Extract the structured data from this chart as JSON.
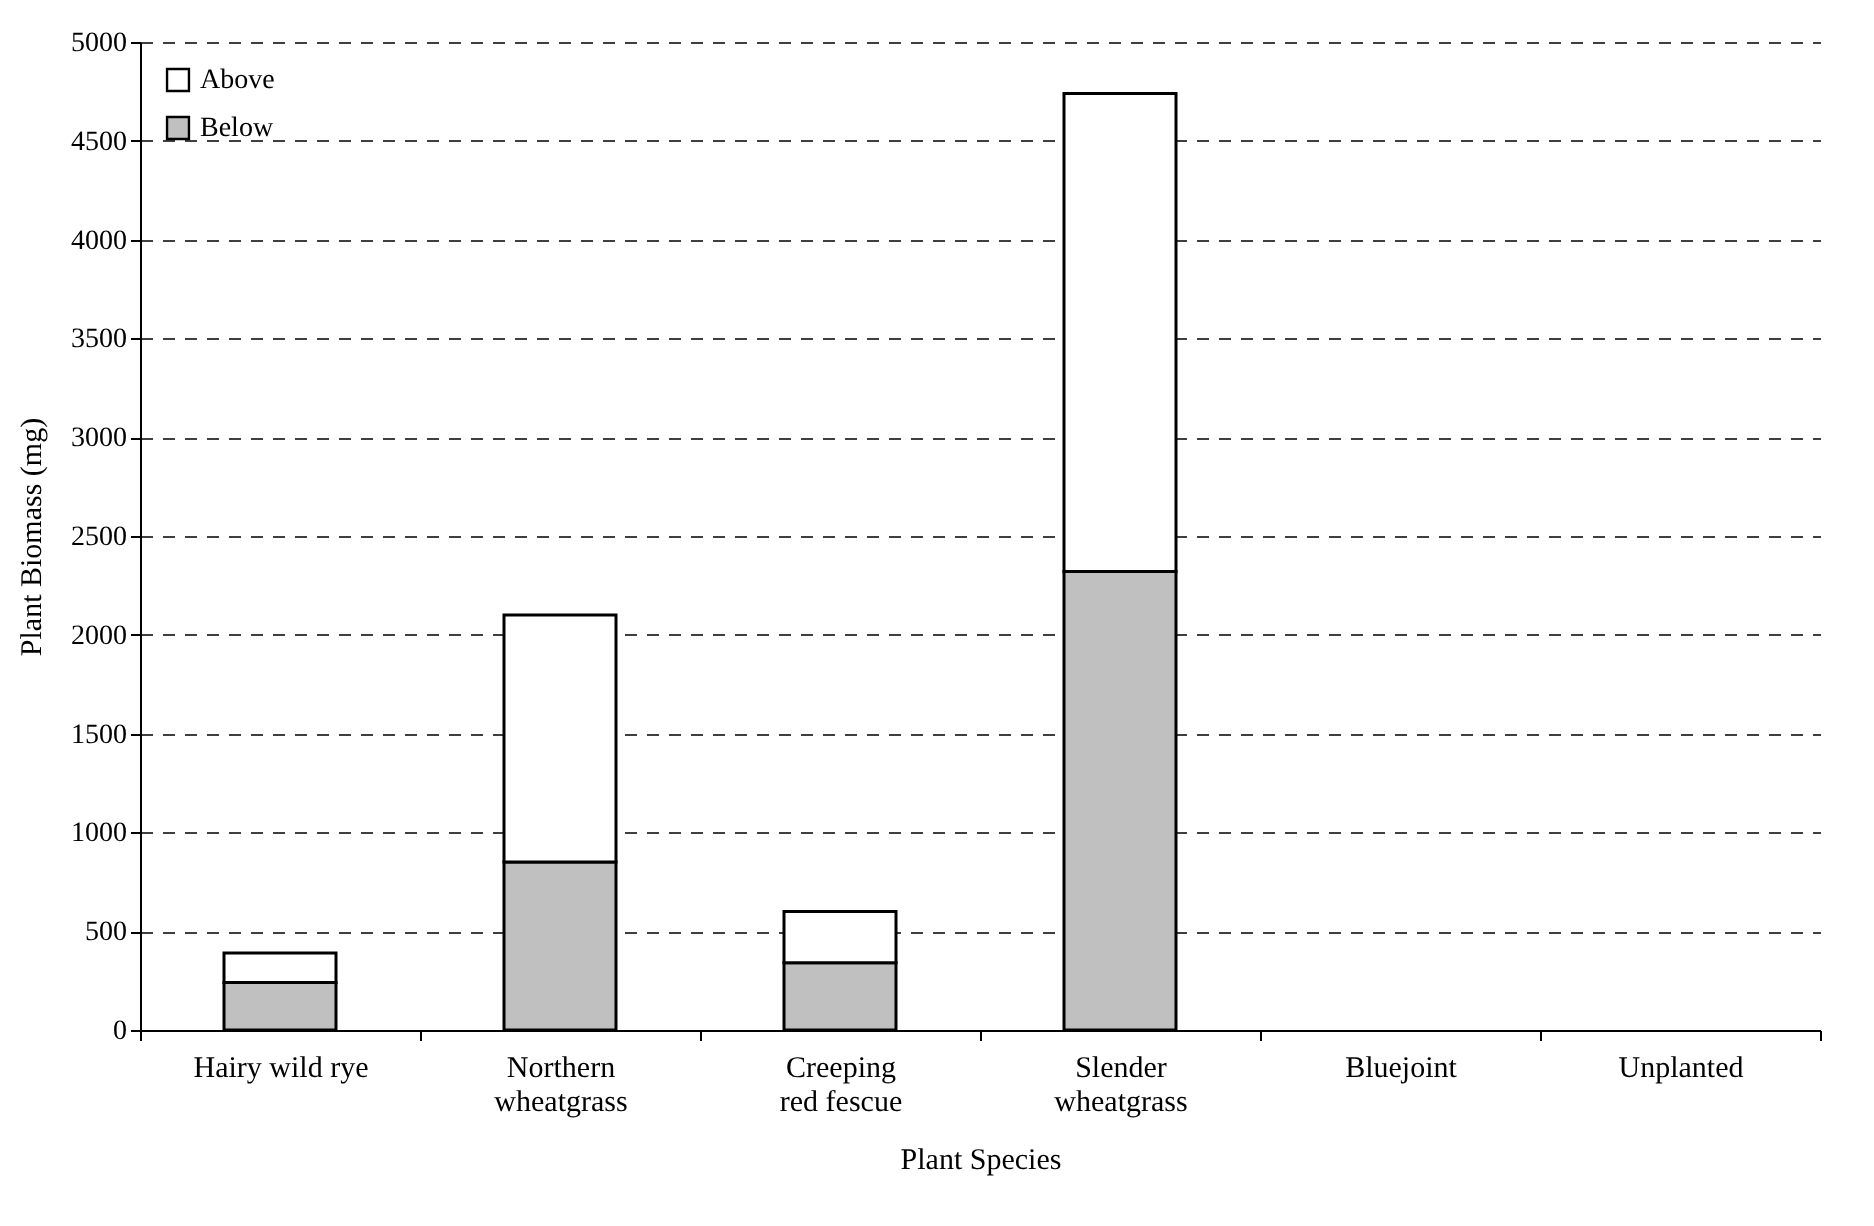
{
  "chart_data": {
    "type": "bar",
    "stacked": true,
    "xlabel": "Plant Species",
    "ylabel": "Plant Biomass (mg)",
    "categories": [
      "Hairy wild rye",
      "Northern wheatgrass",
      "Creeping red fescue",
      "Slender wheatgrass",
      "Bluejoint",
      "Unplanted"
    ],
    "series": [
      {
        "name": "Below",
        "color": "#c0c0c0",
        "values": [
          240,
          850,
          340,
          2320,
          0,
          0
        ]
      },
      {
        "name": "Above",
        "color": "#ffffff",
        "values": [
          150,
          1250,
          260,
          2420,
          0,
          0
        ]
      }
    ],
    "ylim": [
      0,
      5000
    ],
    "yticks": [
      0,
      500,
      1000,
      1500,
      2000,
      2500,
      3000,
      3500,
      4000,
      4500,
      5000
    ],
    "grid": "y",
    "legend": "top left"
  }
}
